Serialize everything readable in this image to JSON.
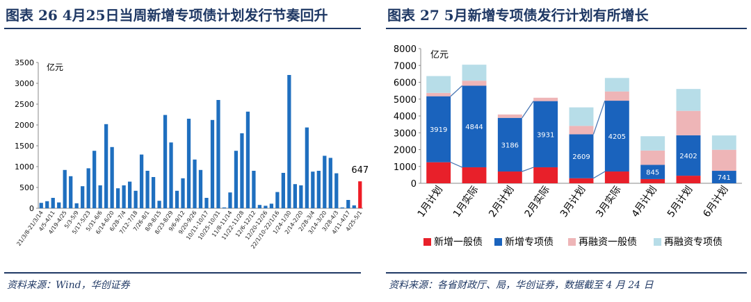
{
  "left": {
    "title": "图表 26   4月25日当周新增专项债计划发行节奏回升",
    "source": "资料来源：Wind，华创证券",
    "chart_data": {
      "type": "bar",
      "unit_label": "亿元",
      "ylim": [
        0,
        3500
      ],
      "yticks": [
        0,
        500,
        1000,
        1500,
        2000,
        2500,
        3000,
        3500
      ],
      "bar_color": "#1f6fbf",
      "highlight_color": "#ee1c25",
      "x_labels": [
        "21/3/8-21/3/14",
        "4/5-4/11",
        "4/19-4/25",
        "5/3-5/9",
        "5/17-5/23",
        "5/31-6/6",
        "6/14-6/20",
        "6/28-7/4",
        "7/12-7/18",
        "7/26-8/1",
        "8/9-8/15",
        "8/23-8/29",
        "9/6-9/12",
        "9/20-9/26",
        "10/11-10/17",
        "10/25-10/31",
        "11/8-11/14",
        "11/22-11/28",
        "12/6-12/12",
        "12/20-12/26",
        "22/1/10-22/1/16",
        "1/24-1/30",
        "2/14-2/20",
        "2/28-3/4",
        "3/14-3/20",
        "3/28-4/3",
        "4/11-4/17",
        "4/25-5/1"
      ],
      "values": [
        130,
        170,
        250,
        140,
        920,
        770,
        120,
        530,
        960,
        1380,
        550,
        2020,
        1470,
        480,
        550,
        640,
        420,
        1290,
        900,
        750,
        180,
        2240,
        1580,
        420,
        720,
        2150,
        1170,
        920,
        250,
        2120,
        2600,
        20,
        380,
        1380,
        1800,
        2320,
        900,
        80,
        60,
        110,
        390,
        850,
        3200,
        580,
        550,
        1940,
        880,
        900,
        1260,
        1210,
        840,
        20,
        200,
        70,
        647
      ],
      "highlight_label": "647"
    }
  },
  "right": {
    "title": "图表 27   5月新增专项债发行计划有所增长",
    "source": "资料来源：各省财政厅、局，华创证券，数据截至 4 月 24 日",
    "chart_data": {
      "type": "stacked-bar",
      "unit_label": "亿元",
      "ylim": [
        0,
        8000
      ],
      "yticks": [
        0,
        1000,
        2000,
        3000,
        4000,
        5000,
        6000,
        7000,
        8000
      ],
      "categories": [
        "1月计划",
        "1月实际",
        "2月计划",
        "2月实际",
        "3月计划",
        "3月实际",
        "4月计划",
        "5月计划",
        "6月计划"
      ],
      "series": [
        {
          "name": "新增一般债",
          "color": "#e8202a",
          "values": [
            1250,
            950,
            700,
            950,
            300,
            700,
            250,
            450,
            0
          ]
        },
        {
          "name": "新增专项债",
          "color": "#1a63bd",
          "values": [
            3919,
            4844,
            3186,
            3931,
            2609,
            4205,
            845,
            2402,
            741
          ]
        },
        {
          "name": "再融资一般债",
          "color": "#eeb5b7",
          "values": [
            200,
            300,
            200,
            200,
            500,
            550,
            850,
            1450,
            1250
          ]
        },
        {
          "name": "再融资专项债",
          "color": "#b7dde8",
          "values": [
            1000,
            950,
            0,
            0,
            1100,
            800,
            850,
            1300,
            850
          ]
        }
      ],
      "data_labels": [
        "3919",
        "4844",
        "3186",
        "3931",
        "2609",
        "4205",
        "845",
        "2402",
        "741"
      ]
    }
  }
}
